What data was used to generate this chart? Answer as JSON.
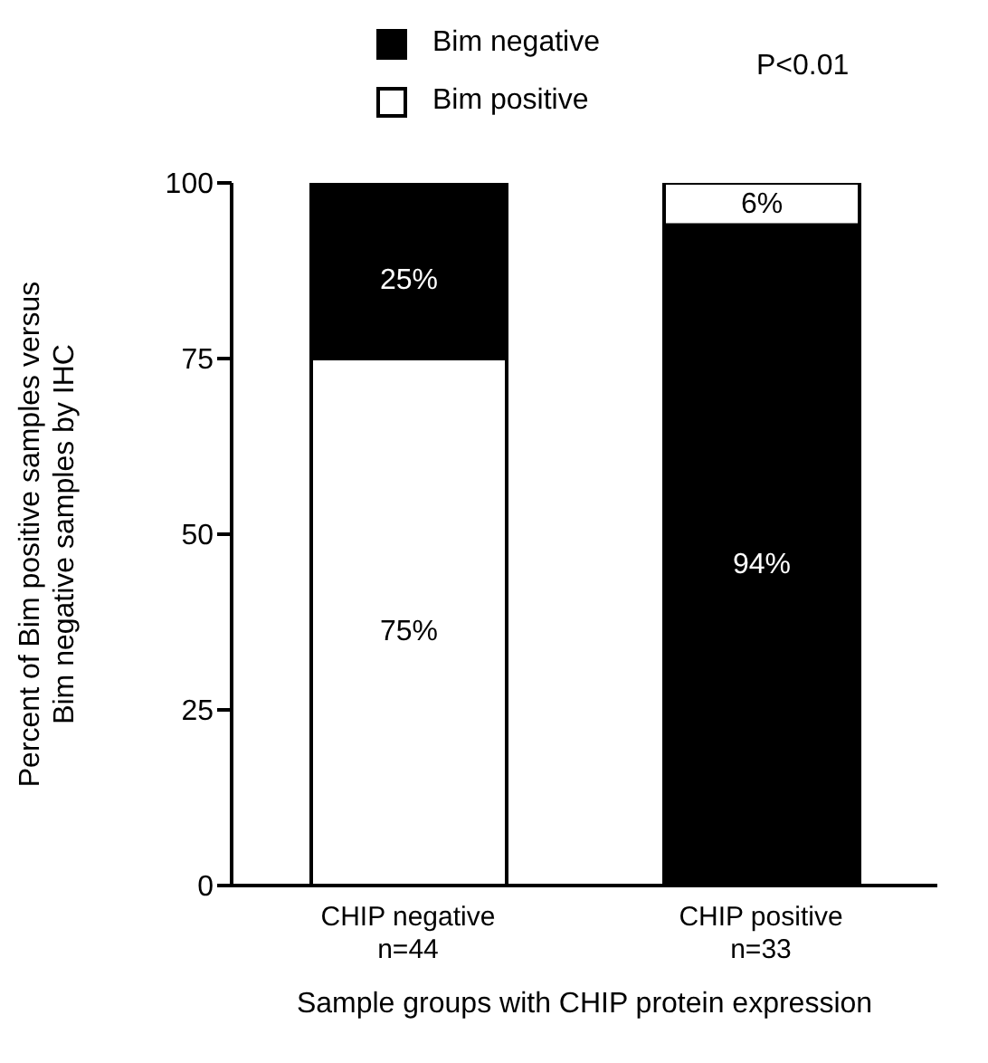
{
  "chart_data": {
    "type": "bar",
    "categories": [
      "CHIP negative\nn=44",
      "CHIP positive\nn=33"
    ],
    "series": [
      {
        "name": "Bim negative",
        "color": "#000000",
        "values": [
          25,
          94
        ],
        "base": [
          75,
          0
        ],
        "value_labels": [
          "25%",
          "94%"
        ]
      },
      {
        "name": "Bim positive",
        "color": "#ffffff",
        "values": [
          75,
          6
        ],
        "base": [
          0,
          94
        ],
        "value_labels": [
          "75%",
          "6%"
        ]
      }
    ],
    "ylim": [
      0,
      100
    ],
    "yticks": [
      0,
      25,
      50,
      75,
      100
    ],
    "xlabel": "Sample groups with CHIP protein expression",
    "ylabel": "Percent of  Bim positive samples  versus\nBim negative samples by IHC",
    "annotations": [
      "P<0.01"
    ],
    "legend": "top left"
  }
}
